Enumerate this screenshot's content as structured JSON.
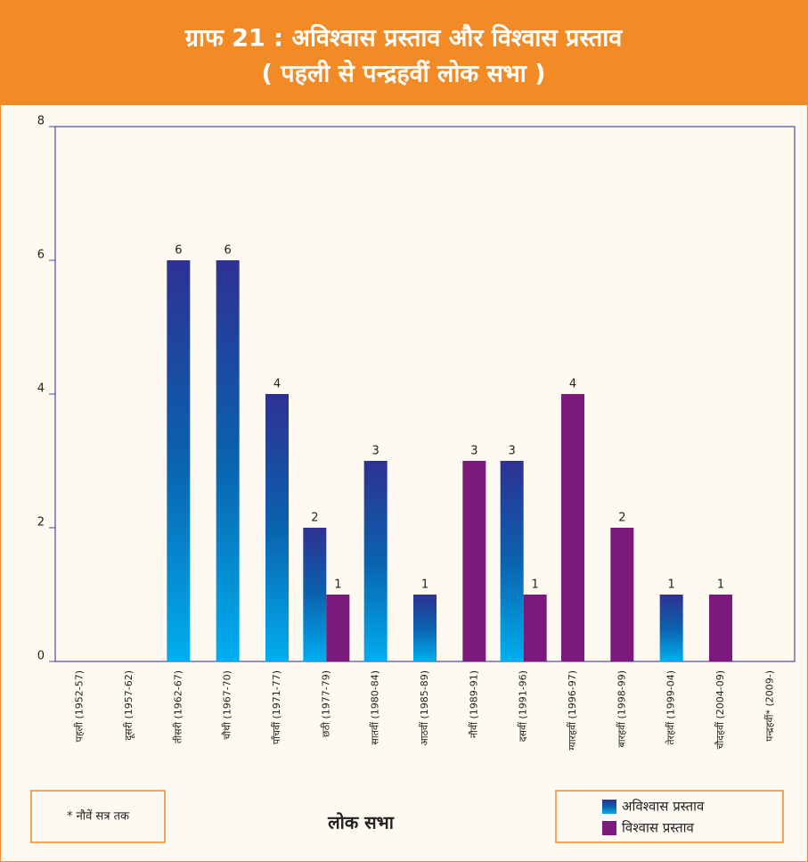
{
  "chart_data": {
    "type": "bar",
    "title": "ग्राफ 21 : अविश्वास प्रस्ताव और विश्वास प्रस्ताव",
    "subtitle": "( पहली से पन्द्रहवीं लोक सभा )",
    "xlabel": "लोक सभा",
    "note": "* नौवें सत्र तक",
    "categories": [
      "पहली (1952-57)",
      "दूसरी (1957-62)",
      "तीसरी (1962-67)",
      "चौथी (1967-70)",
      "पाँचवीं (1971-77)",
      "छठी (1977-79)",
      "सातवीं (1980-84)",
      "आठवीं (1985-89)",
      "नौवीं (1989-91)",
      "दसवीं (1991-96)",
      "ग्यारहवीं (1996-97)",
      "बारहवीं (1998-99)",
      "तेरहवीं (1999-04)",
      "चौदहवीं (2004-09)",
      "पन्द्रहवीं* (2009-)"
    ],
    "series": [
      {
        "name": "अविश्वास प्रस्ताव",
        "color": "gradient:#2e3192-#00aeef",
        "values": [
          null,
          null,
          6,
          6,
          4,
          2,
          3,
          1,
          null,
          3,
          null,
          null,
          1,
          null,
          null
        ]
      },
      {
        "name": "विश्वास प्रस्ताव",
        "color": "#7b1a7a",
        "values": [
          null,
          null,
          null,
          null,
          null,
          1,
          null,
          null,
          3,
          1,
          4,
          2,
          null,
          1,
          null
        ]
      }
    ],
    "ylim": [
      0,
      8
    ],
    "yticks": [
      0,
      2,
      4,
      6,
      8
    ],
    "legend": "lower right"
  }
}
